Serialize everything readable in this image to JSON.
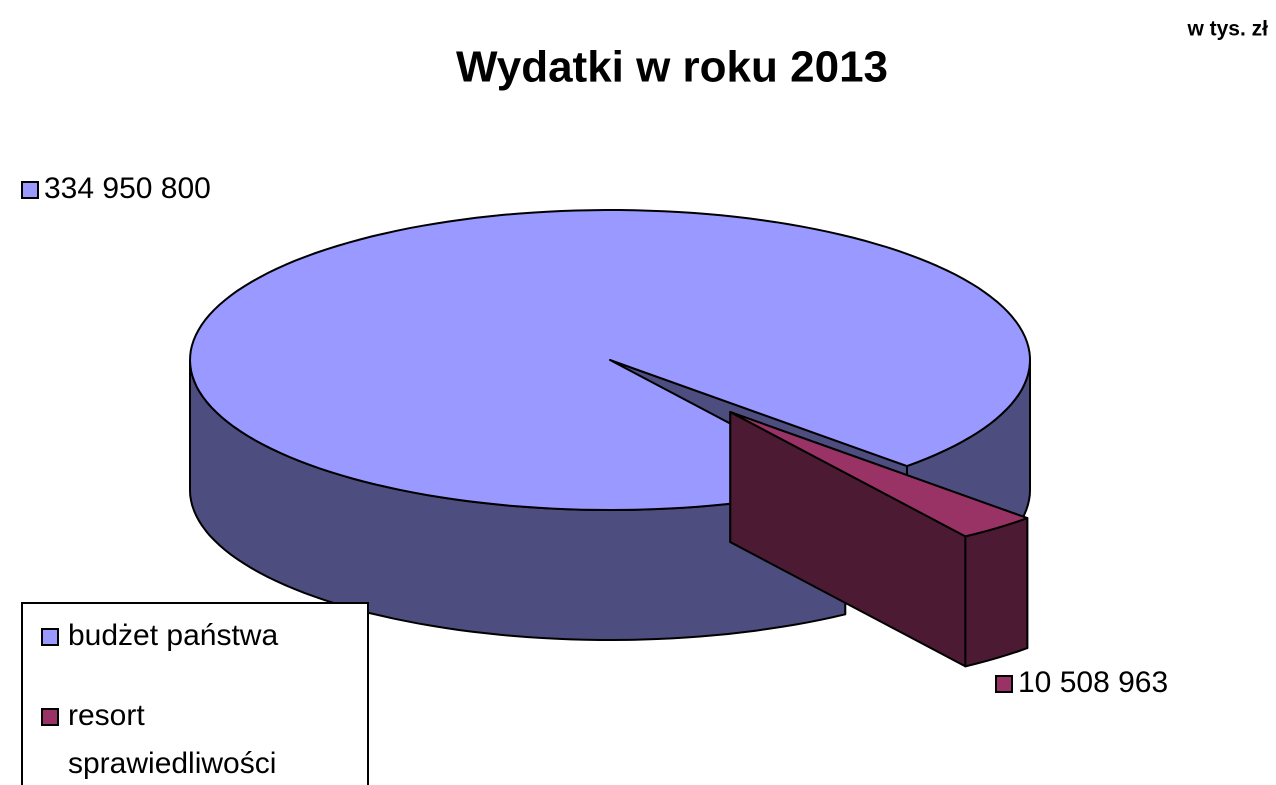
{
  "chart_data": {
    "type": "pie3d",
    "title": "Wydatki w roku 2013",
    "unit": "w tys. zł",
    "categories": [
      "budżet państwa",
      "resort sprawiedliwości"
    ],
    "values": [
      334950800,
      10508963
    ],
    "value_labels": [
      "334 950 800",
      "10 508 963"
    ],
    "colors": [
      "#9999ff",
      "#993366"
    ],
    "legend": "bottom-left"
  }
}
